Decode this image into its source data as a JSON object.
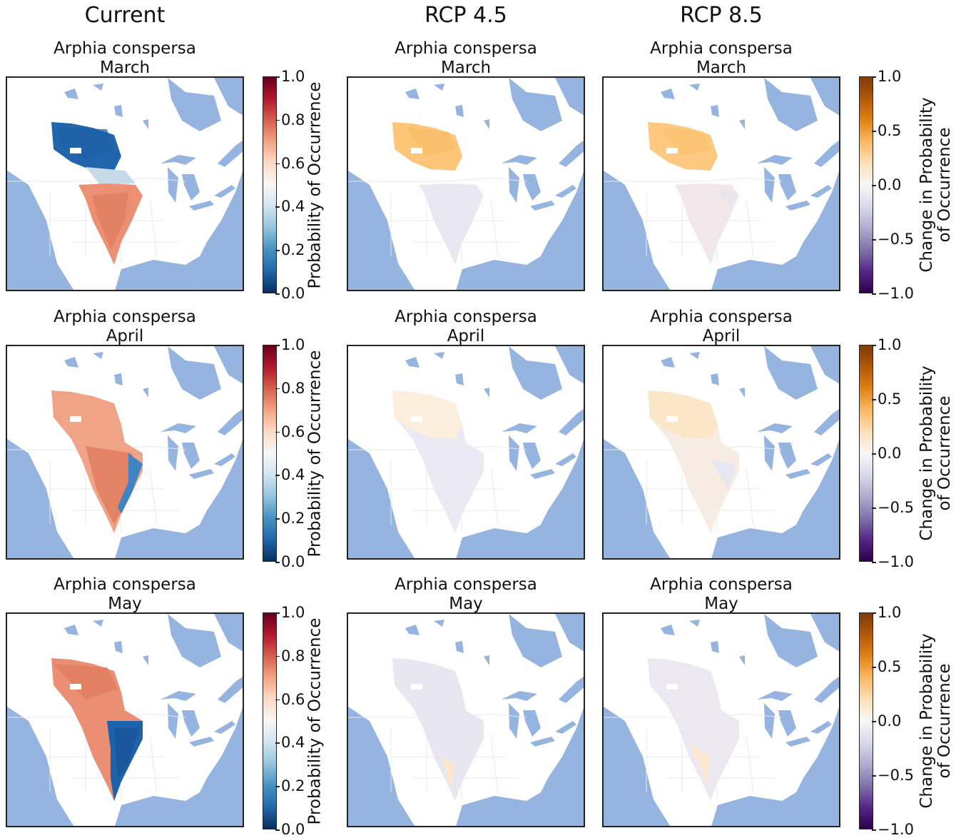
{
  "columns": [
    "Current",
    "RCP 4.5",
    "RCP 8.5"
  ],
  "species": "Arphia conspersa",
  "months": [
    "March",
    "April",
    "May"
  ],
  "colorbar_prob": {
    "label": "Probability of Occurrence",
    "ticks": [
      "1.0",
      "0.8",
      "0.6",
      "0.4",
      "0.2",
      "0.0"
    ],
    "cmap": "RdBu_r"
  },
  "colorbar_change": {
    "label_line1": "Change in Probability",
    "label_line2": "of Occurrence",
    "ticks": [
      "1.0",
      "0.5",
      "0.0",
      "−0.5",
      "−1.0"
    ],
    "cmap": "PuOr_r"
  },
  "colors": {
    "water": "#95b4e0",
    "land": "#ffffff",
    "border": "#e8e8e8"
  }
}
